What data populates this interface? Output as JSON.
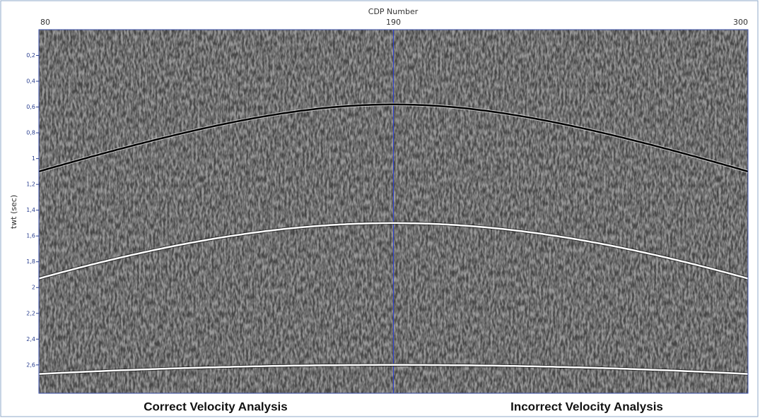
{
  "chart_data": {
    "type": "seismic",
    "x_label": "CDP Number",
    "y_label": "twt (sec)",
    "xlim": [
      80,
      300
    ],
    "xticks": [
      80,
      190,
      300
    ],
    "ylim": [
      0,
      2.82
    ],
    "yticks": [
      {
        "value": 0.2,
        "label": "0,2"
      },
      {
        "value": 0.4,
        "label": "0,4"
      },
      {
        "value": 0.6,
        "label": "0,6"
      },
      {
        "value": 0.8,
        "label": "0,8"
      },
      1,
      {
        "value": 1.2,
        "label": "1,2"
      },
      {
        "value": 1.4,
        "label": "1,4"
      },
      {
        "value": 1.6,
        "label": "1,6"
      },
      {
        "value": 1.8,
        "label": "1,8"
      },
      2,
      {
        "value": 2.2,
        "label": "2,2"
      },
      {
        "value": 2.4,
        "label": "2,4"
      },
      {
        "value": 2.6,
        "label": "2,6"
      }
    ],
    "reflectors": [
      {
        "color": "#000000",
        "apex_cdp": 190,
        "apex_twt": 0.58,
        "edge_twt": 1.1
      },
      {
        "color": "#ffffff",
        "apex_cdp": 190,
        "apex_twt": 1.5,
        "edge_twt": 1.93
      },
      {
        "color": "#ffffff",
        "apex_cdp": 190,
        "apex_twt": 2.6,
        "edge_twt": 2.67
      }
    ],
    "annotations": [
      "Correct Velocity Analysis",
      "Incorrect Velocity Analysis"
    ]
  }
}
